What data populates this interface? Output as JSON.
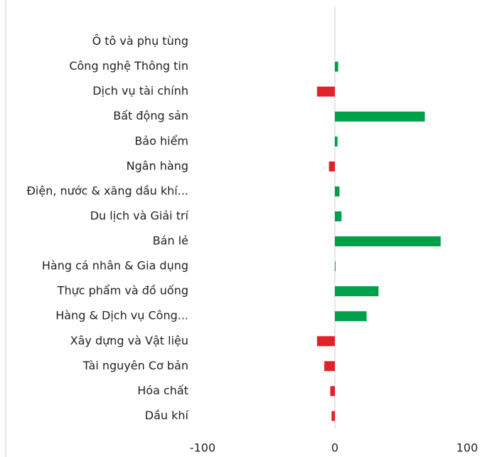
{
  "chart_data": {
    "type": "bar",
    "orientation": "horizontal",
    "categories": [
      "Ô tô và phụ tùng",
      "Công nghệ Thông tin",
      "Dịch vụ tài chính",
      "Bất động sản",
      "Bảo hiểm",
      "Ngân hàng",
      "Điện, nước & xăng dầu khí...",
      "Du lịch và Giải trí",
      "Bán lẻ",
      "Hàng cá nhân & Gia dụng",
      "Thực phẩm và đồ uống",
      "Hàng & Dịch vụ Công...",
      "Xây dựng và Vật liệu",
      "Tài nguyên Cơ bản",
      "Hóa chất",
      "Dầu khí"
    ],
    "values": [
      0,
      2.5,
      -13.5,
      68,
      2,
      -4.5,
      3.5,
      5,
      80,
      0.5,
      33,
      24,
      -13.5,
      -8,
      -3.5,
      -2.5
    ],
    "positive_color": "#00a04a",
    "negative_color": "#e2222a",
    "xlim": [
      -100,
      100
    ],
    "xticks": [
      -100,
      0,
      100
    ],
    "grid": false
  }
}
